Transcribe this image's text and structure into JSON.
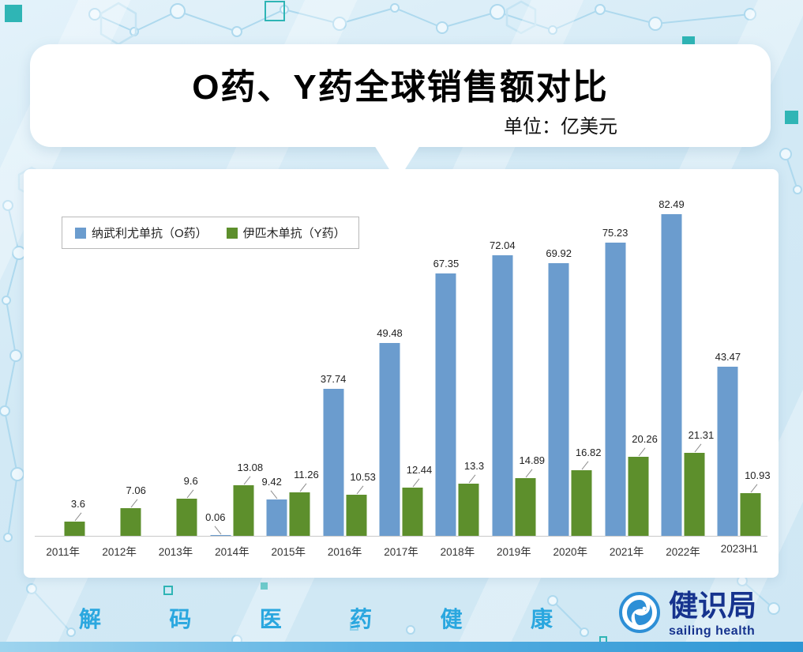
{
  "title": "O药、Y药全球销售额对比",
  "unit_label": "单位：亿美元",
  "chart_data": {
    "type": "bar",
    "title": "O药、Y药全球销售额对比",
    "unit": "亿美元",
    "categories": [
      "2011年",
      "2012年",
      "2013年",
      "2014年",
      "2015年",
      "2016年",
      "2017年",
      "2018年",
      "2019年",
      "2020年",
      "2021年",
      "2022年",
      "2023H1"
    ],
    "series": [
      {
        "name": "纳武利尤单抗（O药）",
        "color": "#6b9cce",
        "values": [
          null,
          null,
          null,
          0.06,
          9.42,
          37.74,
          49.48,
          67.35,
          72.04,
          69.92,
          75.23,
          82.49,
          43.47
        ],
        "labels": [
          "",
          "",
          "",
          "0.06",
          "9.42",
          "37.74",
          "49.48",
          "67.35",
          "72.04",
          "69.92",
          "75.23",
          "82.49",
          "43.47"
        ]
      },
      {
        "name": "伊匹木单抗（Y药）",
        "color": "#5d8f2c",
        "values": [
          3.6,
          7.06,
          9.6,
          13.08,
          11.26,
          10.53,
          12.44,
          13.3,
          14.89,
          16.82,
          20.26,
          21.31,
          10.93
        ],
        "labels": [
          "3.6",
          "7.06",
          "9.6",
          "13.08",
          "11.26",
          "10.53",
          "12.44",
          "13.3",
          "14.89",
          "16.82",
          "20.26",
          "21.31",
          "10.93"
        ]
      }
    ],
    "legend_position": "top-left",
    "ylim": [
      0,
      85
    ],
    "grid": false
  },
  "footer": {
    "slogan_chars": [
      "解",
      "码",
      "医",
      "药",
      "健",
      "康"
    ],
    "logo_text": "健识局",
    "logo_subtext": "sailing health"
  },
  "colors": {
    "o_drug_bar": "#6b9cce",
    "y_drug_bar": "#5d8f2c",
    "slogan_text": "#2aa7df",
    "logo_navy": "#16338e",
    "accent_teal": "#2fb5b5"
  }
}
